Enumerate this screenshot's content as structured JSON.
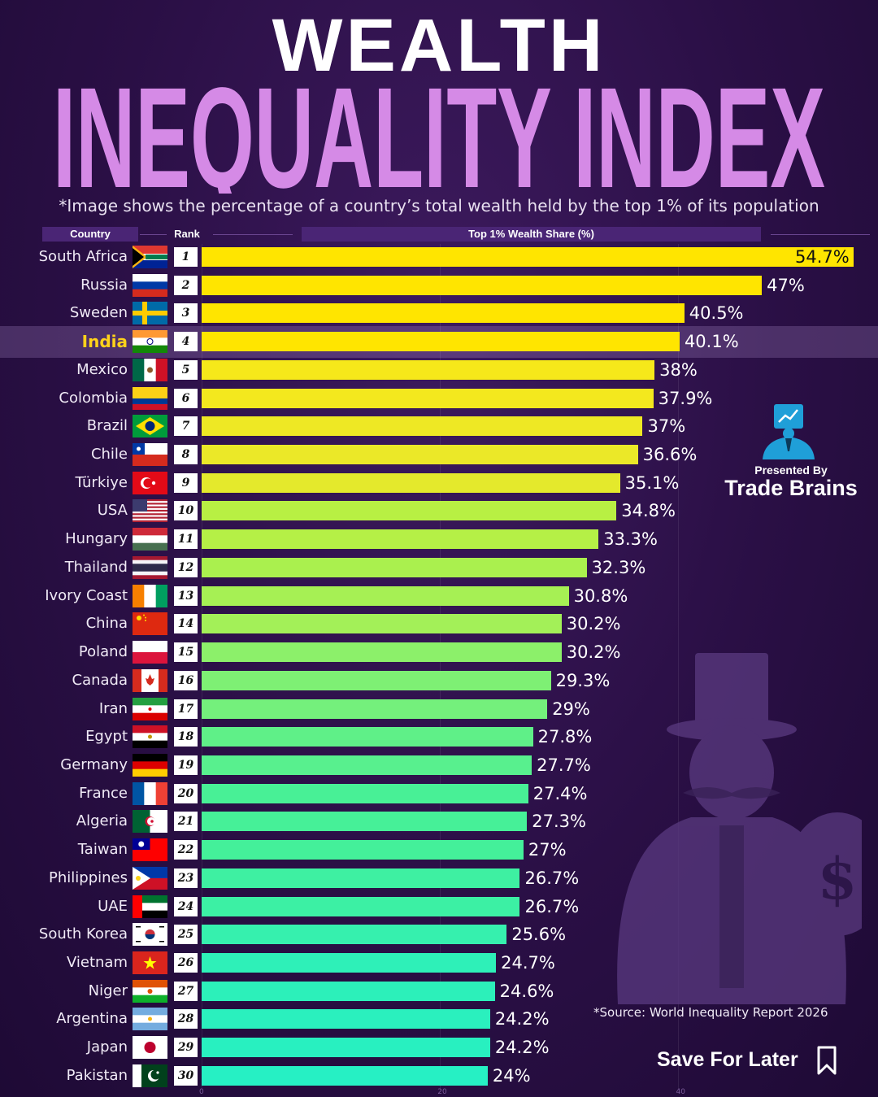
{
  "title_line1": "WEALTH",
  "title_line2": "INEQUALITY INDEX",
  "subtitle": "*Image shows the percentage of a country’s total wealth held by the top 1% of its population",
  "headers": {
    "country": "Country",
    "rank": "Rank",
    "value": "Top 1% Wealth Share (%)"
  },
  "highlight_country": "India",
  "brand": {
    "presented_by": "Presented By",
    "name": "Trade Brains"
  },
  "source": "*Source: World Inequality Report 2026",
  "save_label": "Save For Later",
  "chart_data": {
    "type": "bar",
    "orientation": "horizontal",
    "title": "Wealth Inequality Index",
    "xlabel": "Top 1% Wealth Share (%)",
    "xlim": [
      0,
      54.7
    ],
    "x_ticks": [
      "0",
      "20",
      "40"
    ],
    "categories": [
      "South Africa",
      "Russia",
      "Sweden",
      "India",
      "Mexico",
      "Colombia",
      "Brazil",
      "Chile",
      "Türkiye",
      "USA",
      "Hungary",
      "Thailand",
      "Ivory Coast",
      "China",
      "Poland",
      "Canada",
      "Iran",
      "Egypt",
      "Germany",
      "France",
      "Algeria",
      "Taiwan",
      "Philippines",
      "UAE",
      "South Korea",
      "Vietnam",
      "Niger",
      "Argentina",
      "Japan",
      "Pakistan"
    ],
    "ranks": [
      "1",
      "2",
      "3",
      "4",
      "5",
      "6",
      "7",
      "8",
      "9",
      "10",
      "11",
      "12",
      "13",
      "14",
      "15",
      "16",
      "17",
      "18",
      "19",
      "20",
      "21",
      "22",
      "23",
      "24",
      "25",
      "26",
      "27",
      "28",
      "29",
      "30"
    ],
    "values": [
      54.7,
      47,
      40.5,
      40.1,
      38,
      37.9,
      37,
      36.6,
      35.1,
      34.8,
      33.3,
      32.3,
      30.8,
      30.2,
      30.2,
      29.3,
      29,
      27.8,
      27.7,
      27.4,
      27.3,
      27,
      26.7,
      26.7,
      25.6,
      24.7,
      24.6,
      24.2,
      24.2,
      24
    ],
    "labels": [
      "54.7%",
      "47%",
      "40.5%",
      "40.1%",
      "38%",
      "37.9%",
      "37%",
      "36.6%",
      "35.1%",
      "34.8%",
      "33.3%",
      "32.3%",
      "30.8%",
      "30.2%",
      "30.2%",
      "29.3%",
      "29%",
      "27.8%",
      "27.7%",
      "27.4%",
      "27.3%",
      "27%",
      "26.7%",
      "26.7%",
      "25.6%",
      "24.7%",
      "24.6%",
      "24.2%",
      "24.2%",
      "24%"
    ],
    "bar_colors": [
      "#ffe500",
      "#ffe500",
      "#ffe500",
      "#ffe500",
      "#f6e81a",
      "#f3e81e",
      "#eee824",
      "#ebe828",
      "#e4e92c",
      "#b8f043",
      "#b5f046",
      "#aaf04e",
      "#a6f054",
      "#a3f058",
      "#8cf06a",
      "#7ef074",
      "#74f07c",
      "#5ff088",
      "#58f08e",
      "#48f096",
      "#46f098",
      "#44f09a",
      "#3ef0a2",
      "#3cf0a4",
      "#36f0ae",
      "#2ef0b8",
      "#2cf0ba",
      "#2af0be",
      "#28f0c0",
      "#26f0c4"
    ]
  }
}
